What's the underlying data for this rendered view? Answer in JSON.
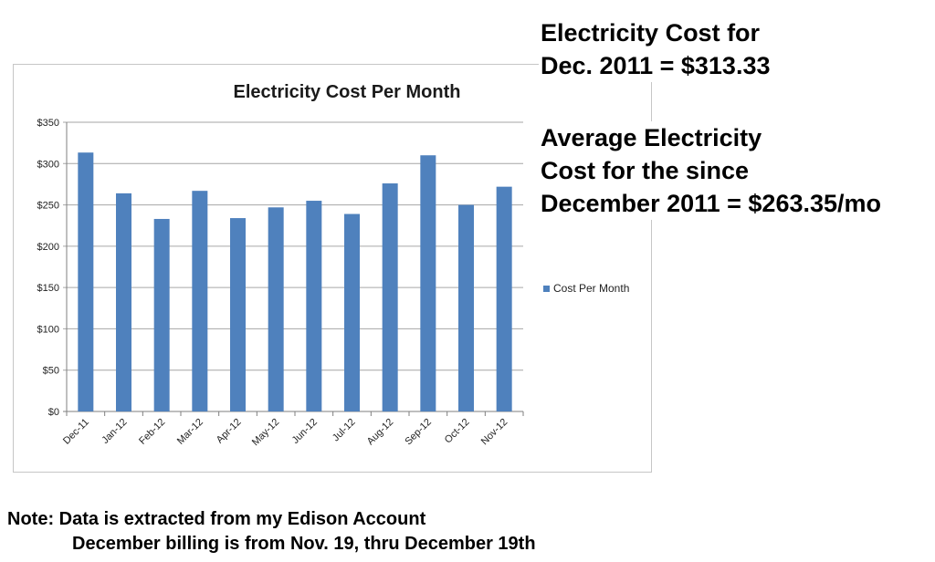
{
  "chart_data": {
    "type": "bar",
    "title": "Electricity Cost Per Month",
    "categories": [
      "Dec-11",
      "Jan-12",
      "Feb-12",
      "Mar-12",
      "Apr-12",
      "May-12",
      "Jun-12",
      "Jul-12",
      "Aug-12",
      "Sep-12",
      "Oct-12",
      "Nov-12"
    ],
    "series": [
      {
        "name": "Cost Per Month",
        "values": [
          313.33,
          264,
          233,
          267,
          234,
          247,
          255,
          239,
          276,
          310,
          250,
          272
        ]
      }
    ],
    "yticks": [
      "$0",
      "$50",
      "$100",
      "$150",
      "$200",
      "$250",
      "$300",
      "$350"
    ],
    "ylim": [
      0,
      350
    ],
    "grid": true,
    "legend_position": "right",
    "bar_color": "#4f81bd"
  },
  "annotations": {
    "line1": "Electricity Cost for",
    "line2": "Dec. 2011 = $313.33",
    "line3": "Average Electricity",
    "line4": "Cost for the since",
    "line5": "December 2011 = $263.35/mo"
  },
  "note": {
    "line1": "Note:  Data is extracted from my Edison Account",
    "line2": "December billing is from Nov. 19, thru December 19th"
  }
}
